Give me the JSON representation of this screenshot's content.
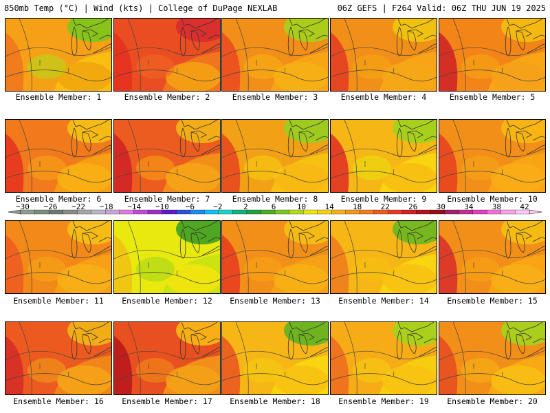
{
  "header": {
    "left": "850mb Temp (°C) | Wind (kts) | College of DuPage NEXLAB",
    "right": "06Z GEFS | F264 Valid: 06Z THU JUN 19 2025"
  },
  "members": [
    {
      "label": "Ensemble Member: 1",
      "colors": [
        "#f6a017",
        "#fbc112",
        "#f0761e",
        "#eea60d",
        "#7cc61d",
        "#aedc18"
      ]
    },
    {
      "label": "Ensemble Member: 2",
      "colors": [
        "#ea4d22",
        "#f17a1c",
        "#e5301e",
        "#f6a314",
        "#d82c2f",
        "#ef6a1f"
      ]
    },
    {
      "label": "Ensemble Member: 3",
      "colors": [
        "#f28f18",
        "#f7a616",
        "#eb4921",
        "#f7b216",
        "#a3d31b",
        "#f7b514"
      ]
    },
    {
      "label": "Ensemble Member: 4",
      "colors": [
        "#f28f18",
        "#f8a616",
        "#e33b22",
        "#f4a816",
        "#f0c60f",
        "#f8a714"
      ]
    },
    {
      "label": "Ensemble Member: 5",
      "colors": [
        "#f28418",
        "#f9a914",
        "#cf2027",
        "#f4a01a",
        "#f4be10",
        "#f7a913"
      ]
    },
    {
      "label": "Ensemble Member: 6",
      "colors": [
        "#f17a1c",
        "#f7a314",
        "#e5321f",
        "#f9b014",
        "#f5c113",
        "#f7a616"
      ]
    },
    {
      "label": "Ensemble Member: 7",
      "colors": [
        "#ec5c20",
        "#f3951a",
        "#cf2126",
        "#f6a617",
        "#f3b516",
        "#f7a616"
      ]
    },
    {
      "label": "Ensemble Member: 8",
      "colors": [
        "#f2a116",
        "#f6c413",
        "#e6451f",
        "#f8b714",
        "#96cf22",
        "#f9d10f"
      ]
    },
    {
      "label": "Ensemble Member: 9",
      "colors": [
        "#f6b616",
        "#f9d70f",
        "#e02c25",
        "#f8bd12",
        "#9ed31e",
        "#e7e20f"
      ]
    },
    {
      "label": "Ensemble Member: 10",
      "colors": [
        "#f28f18",
        "#f9a614",
        "#e73f20",
        "#f9ae15",
        "#f7b813",
        "#f6a818"
      ]
    },
    {
      "label": "Ensemble Member: 11",
      "colors": [
        "#f28918",
        "#f7a316",
        "#ee5a20",
        "#f8b016",
        "#f6c114",
        "#f7a716"
      ]
    },
    {
      "label": "Ensemble Member: 12",
      "colors": [
        "#e9e90f",
        "#c8e211",
        "#f2c014",
        "#f5e50f",
        "#3e9e22",
        "#9ed31e"
      ]
    },
    {
      "label": "Ensemble Member: 13",
      "colors": [
        "#f28f18",
        "#f7a316",
        "#e73b20",
        "#f8b214",
        "#f5c014",
        "#f7a616"
      ]
    },
    {
      "label": "Ensemble Member: 14",
      "colors": [
        "#f6b616",
        "#f9d70f",
        "#f07a1e",
        "#f8c112",
        "#6ab820",
        "#f8c110"
      ]
    },
    {
      "label": "Ensemble Member: 15",
      "colors": [
        "#f28f18",
        "#f9a614",
        "#d82d2a",
        "#f8b016",
        "#f5c013",
        "#f7a616"
      ]
    },
    {
      "label": "Ensemble Member: 16",
      "colors": [
        "#ec5a20",
        "#f18a18",
        "#d52a28",
        "#f6a417",
        "#f3b516",
        "#f3a217"
      ]
    },
    {
      "label": "Ensemble Member: 17",
      "colors": [
        "#e8501f",
        "#f3951a",
        "#b9141d",
        "#f5a317",
        "#f9b814",
        "#f29219"
      ]
    },
    {
      "label": "Ensemble Member: 18",
      "colors": [
        "#f6b616",
        "#f9d70f",
        "#ea5421",
        "#f8c012",
        "#5fb421",
        "#f4cf10"
      ]
    },
    {
      "label": "Ensemble Member: 19",
      "colors": [
        "#f6ac16",
        "#f7d00f",
        "#ee6a1f",
        "#f8c112",
        "#a2d41d",
        "#f6cf10"
      ]
    },
    {
      "label": "Ensemble Member: 20",
      "colors": [
        "#f28f18",
        "#f7ad16",
        "#e64b20",
        "#f9c012",
        "#a3d41c",
        "#f8b714"
      ]
    }
  ],
  "colorbar": {
    "labels": [
      "−30",
      "−26",
      "−22",
      "−18",
      "−14",
      "−10",
      "−6",
      "−2",
      "2",
      "6",
      "10",
      "14",
      "18",
      "22",
      "26",
      "30",
      "34",
      "38",
      "42"
    ],
    "colors": [
      "#8e9e8e",
      "#7c8c7c",
      "#6f7a74",
      "#8a8a8a",
      "#a5a5a5",
      "#b7b7c5",
      "#c7a5d6",
      "#e07ae0",
      "#c14bd4",
      "#9b30c8",
      "#5a1ec8",
      "#3050d8",
      "#1a8cf0",
      "#10c0f0",
      "#18d7c2",
      "#14b07a",
      "#20a040",
      "#4fac22",
      "#80c41e",
      "#b8d81a",
      "#e8e612",
      "#f8d010",
      "#f6b018",
      "#f49418",
      "#f07a1c",
      "#ec5a20",
      "#e53a22",
      "#d02028",
      "#b0141e",
      "#901016",
      "#a0206a",
      "#c0308f",
      "#e040c0",
      "#f070d8",
      "#f9a0ea",
      "#fcc8f4"
    ]
  }
}
